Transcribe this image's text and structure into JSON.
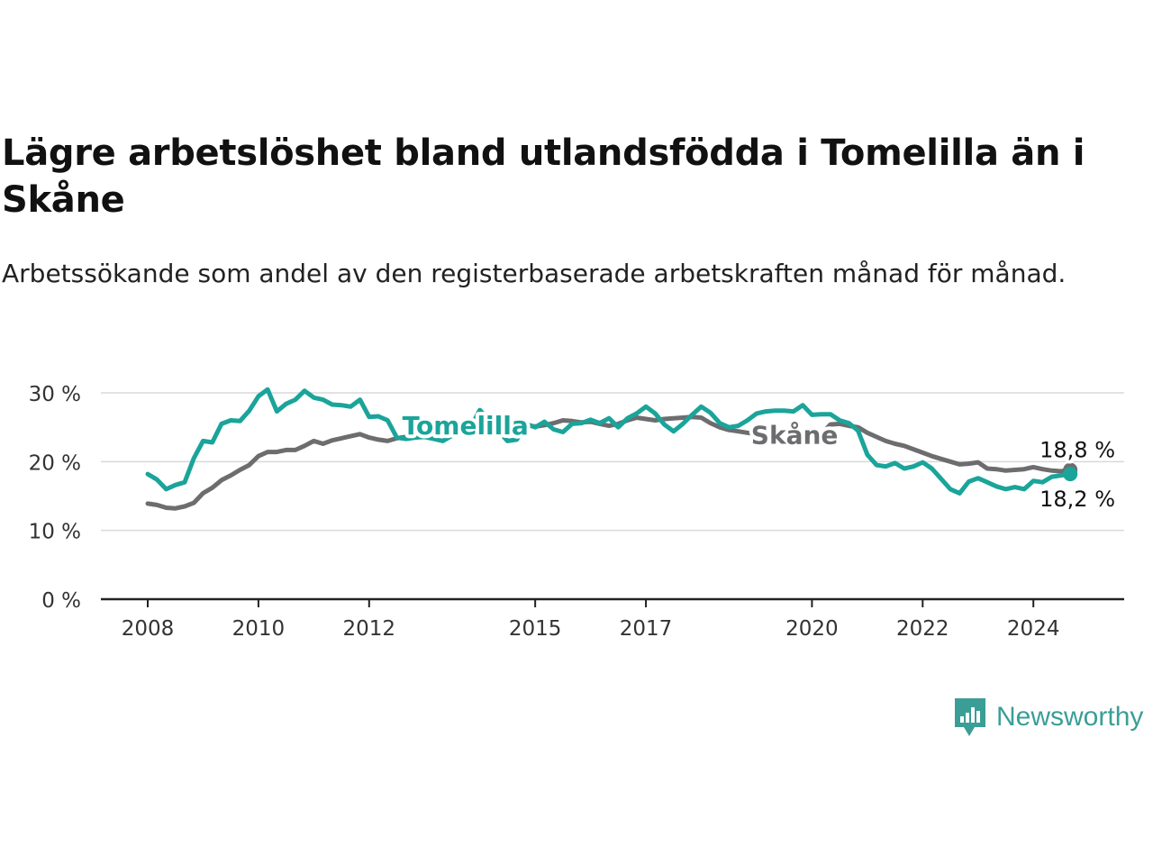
{
  "header": {
    "title": "Lägre arbetslöshet bland utlandsfödda i Tomelilla än i Skåne",
    "subtitle": "Arbetssökande som andel av den registerbaserade arbetskraften månad för månad."
  },
  "brand": {
    "name": "Newsworthy",
    "icon": "bar-chart-speech-bubble-icon",
    "color": "#3a9e97"
  },
  "chart_data": {
    "type": "line",
    "title": "Lägre arbetslöshet bland utlandsfödda i Tomelilla än i Skåne",
    "subtitle": "Arbetssökande som andel av den registerbaserade arbetskraften månad för månad.",
    "x_ticks": [
      "2008",
      "2010",
      "2012",
      "2015",
      "2017",
      "2020",
      "2022",
      "2024"
    ],
    "y_ticks": [
      "0 %",
      "10 %",
      "20 %",
      "30 %"
    ],
    "ylim": [
      0,
      30
    ],
    "grid": true,
    "series": [
      {
        "name": "Tomelilla",
        "color": "#1aa49a",
        "label": "Tomelilla",
        "end_label": "18,2 %",
        "points": [
          [
            "2008-01",
            18.2
          ],
          [
            "2008-03",
            17.4
          ],
          [
            "2008-05",
            16.0
          ],
          [
            "2008-07",
            16.6
          ],
          [
            "2008-09",
            17.0
          ],
          [
            "2008-11",
            20.5
          ],
          [
            "2009-01",
            23.0
          ],
          [
            "2009-03",
            22.8
          ],
          [
            "2009-05",
            25.5
          ],
          [
            "2009-07",
            26.0
          ],
          [
            "2009-09",
            25.9
          ],
          [
            "2009-11",
            27.4
          ],
          [
            "2010-01",
            29.5
          ],
          [
            "2010-03",
            30.5
          ],
          [
            "2010-05",
            27.3
          ],
          [
            "2010-07",
            28.4
          ],
          [
            "2010-09",
            29.0
          ],
          [
            "2010-11",
            30.3
          ],
          [
            "2011-01",
            29.3
          ],
          [
            "2011-03",
            29.0
          ],
          [
            "2011-05",
            28.3
          ],
          [
            "2011-07",
            28.2
          ],
          [
            "2011-09",
            28.0
          ],
          [
            "2011-11",
            29.0
          ],
          [
            "2012-01",
            26.5
          ],
          [
            "2012-03",
            26.6
          ],
          [
            "2012-05",
            26.0
          ],
          [
            "2012-07",
            23.5
          ],
          [
            "2012-09",
            23.3
          ],
          [
            "2012-11",
            23.5
          ],
          [
            "2013-01",
            23.6
          ],
          [
            "2013-03",
            23.3
          ],
          [
            "2013-05",
            23.0
          ],
          [
            "2013-07",
            23.8
          ],
          [
            "2013-09",
            24.5
          ],
          [
            "2013-11",
            25.0
          ],
          [
            "2014-01",
            27.5
          ],
          [
            "2014-03",
            26.0
          ],
          [
            "2014-05",
            24.5
          ],
          [
            "2014-07",
            23.0
          ],
          [
            "2014-09",
            23.2
          ],
          [
            "2014-11",
            25.5
          ],
          [
            "2015-01",
            25.0
          ],
          [
            "2015-03",
            25.8
          ],
          [
            "2015-05",
            24.7
          ],
          [
            "2015-07",
            24.3
          ],
          [
            "2015-09",
            25.5
          ],
          [
            "2015-11",
            25.6
          ],
          [
            "2016-01",
            26.1
          ],
          [
            "2016-03",
            25.6
          ],
          [
            "2016-05",
            26.3
          ],
          [
            "2016-07",
            25.0
          ],
          [
            "2016-09",
            26.3
          ],
          [
            "2016-11",
            27.0
          ],
          [
            "2017-01",
            28.0
          ],
          [
            "2017-03",
            27.0
          ],
          [
            "2017-05",
            25.4
          ],
          [
            "2017-07",
            24.4
          ],
          [
            "2017-09",
            25.5
          ],
          [
            "2017-11",
            26.8
          ],
          [
            "2018-01",
            28.0
          ],
          [
            "2018-03",
            27.1
          ],
          [
            "2018-05",
            25.6
          ],
          [
            "2018-07",
            25.0
          ],
          [
            "2018-09",
            25.2
          ],
          [
            "2018-11",
            26.0
          ],
          [
            "2019-01",
            27.0
          ],
          [
            "2019-03",
            27.3
          ],
          [
            "2019-05",
            27.4
          ],
          [
            "2019-07",
            27.4
          ],
          [
            "2019-09",
            27.3
          ],
          [
            "2019-11",
            28.2
          ],
          [
            "2020-01",
            26.8
          ],
          [
            "2020-03",
            26.9
          ],
          [
            "2020-05",
            26.9
          ],
          [
            "2020-07",
            26.0
          ],
          [
            "2020-09",
            25.6
          ],
          [
            "2020-11",
            24.5
          ],
          [
            "2021-01",
            21.0
          ],
          [
            "2021-03",
            19.5
          ],
          [
            "2021-05",
            19.3
          ],
          [
            "2021-07",
            19.8
          ],
          [
            "2021-09",
            19.0
          ],
          [
            "2021-11",
            19.3
          ],
          [
            "2022-01",
            19.9
          ],
          [
            "2022-03",
            19.0
          ],
          [
            "2022-05",
            17.5
          ],
          [
            "2022-07",
            16.0
          ],
          [
            "2022-09",
            15.4
          ],
          [
            "2022-11",
            17.1
          ],
          [
            "2023-01",
            17.6
          ],
          [
            "2023-03",
            17.0
          ],
          [
            "2023-05",
            16.4
          ],
          [
            "2023-07",
            16.0
          ],
          [
            "2023-09",
            16.3
          ],
          [
            "2023-11",
            16.0
          ],
          [
            "2024-01",
            17.2
          ],
          [
            "2024-03",
            17.0
          ],
          [
            "2024-05",
            17.8
          ],
          [
            "2024-07",
            18.0
          ],
          [
            "2024-09",
            18.2
          ]
        ]
      },
      {
        "name": "Skåne",
        "color": "#6d6d6f",
        "label": "Skåne",
        "end_label": "18,8 %",
        "points": [
          [
            "2008-01",
            13.9
          ],
          [
            "2008-03",
            13.7
          ],
          [
            "2008-05",
            13.3
          ],
          [
            "2008-07",
            13.2
          ],
          [
            "2008-09",
            13.5
          ],
          [
            "2008-11",
            14.0
          ],
          [
            "2009-01",
            15.4
          ],
          [
            "2009-03",
            16.2
          ],
          [
            "2009-05",
            17.3
          ],
          [
            "2009-07",
            18.0
          ],
          [
            "2009-09",
            18.8
          ],
          [
            "2009-11",
            19.5
          ],
          [
            "2010-01",
            20.8
          ],
          [
            "2010-03",
            21.4
          ],
          [
            "2010-05",
            21.4
          ],
          [
            "2010-07",
            21.7
          ],
          [
            "2010-09",
            21.7
          ],
          [
            "2010-11",
            22.3
          ],
          [
            "2011-01",
            23.0
          ],
          [
            "2011-03",
            22.6
          ],
          [
            "2011-05",
            23.1
          ],
          [
            "2011-07",
            23.4
          ],
          [
            "2011-09",
            23.7
          ],
          [
            "2011-11",
            24.0
          ],
          [
            "2012-01",
            23.5
          ],
          [
            "2012-03",
            23.2
          ],
          [
            "2012-05",
            23.0
          ],
          [
            "2012-07",
            23.4
          ],
          [
            "2012-09",
            23.6
          ],
          [
            "2012-11",
            23.8
          ],
          [
            "2013-01",
            24.0
          ],
          [
            "2013-03",
            24.2
          ],
          [
            "2013-05",
            24.3
          ],
          [
            "2013-07",
            24.5
          ],
          [
            "2013-09",
            24.6
          ],
          [
            "2013-11",
            24.8
          ],
          [
            "2014-01",
            24.9
          ],
          [
            "2014-03",
            25.0
          ],
          [
            "2014-05",
            25.0
          ],
          [
            "2014-07",
            25.1
          ],
          [
            "2014-09",
            25.2
          ],
          [
            "2014-11",
            25.3
          ],
          [
            "2015-01",
            25.1
          ],
          [
            "2015-03",
            25.3
          ],
          [
            "2015-05",
            25.6
          ],
          [
            "2015-07",
            26.0
          ],
          [
            "2015-09",
            25.9
          ],
          [
            "2015-11",
            25.7
          ],
          [
            "2016-01",
            25.8
          ],
          [
            "2016-03",
            25.5
          ],
          [
            "2016-05",
            25.2
          ],
          [
            "2016-07",
            25.5
          ],
          [
            "2016-09",
            26.0
          ],
          [
            "2016-11",
            26.4
          ],
          [
            "2017-01",
            26.2
          ],
          [
            "2017-03",
            26.0
          ],
          [
            "2017-05",
            26.2
          ],
          [
            "2017-07",
            26.3
          ],
          [
            "2017-09",
            26.4
          ],
          [
            "2017-11",
            26.5
          ],
          [
            "2018-01",
            26.4
          ],
          [
            "2018-03",
            25.6
          ],
          [
            "2018-05",
            25.0
          ],
          [
            "2018-07",
            24.6
          ],
          [
            "2018-09",
            24.4
          ],
          [
            "2018-11",
            24.2
          ],
          [
            "2019-01",
            24.0
          ],
          [
            "2019-03",
            23.9
          ],
          [
            "2019-05",
            23.8
          ],
          [
            "2019-07",
            23.7
          ],
          [
            "2019-09",
            23.6
          ],
          [
            "2019-11",
            23.5
          ],
          [
            "2020-01",
            23.3
          ],
          [
            "2020-03",
            24.0
          ],
          [
            "2020-05",
            25.4
          ],
          [
            "2020-07",
            25.5
          ],
          [
            "2020-09",
            25.2
          ],
          [
            "2020-11",
            25.0
          ],
          [
            "2021-01",
            24.2
          ],
          [
            "2021-03",
            23.6
          ],
          [
            "2021-05",
            23.0
          ],
          [
            "2021-07",
            22.6
          ],
          [
            "2021-09",
            22.3
          ],
          [
            "2021-11",
            21.8
          ],
          [
            "2022-01",
            21.3
          ],
          [
            "2022-03",
            20.8
          ],
          [
            "2022-05",
            20.4
          ],
          [
            "2022-07",
            20.0
          ],
          [
            "2022-09",
            19.6
          ],
          [
            "2022-11",
            19.7
          ],
          [
            "2023-01",
            19.9
          ],
          [
            "2023-03",
            19.0
          ],
          [
            "2023-05",
            18.9
          ],
          [
            "2023-07",
            18.7
          ],
          [
            "2023-09",
            18.8
          ],
          [
            "2023-11",
            18.9
          ],
          [
            "2024-01",
            19.2
          ],
          [
            "2024-03",
            18.9
          ],
          [
            "2024-05",
            18.7
          ],
          [
            "2024-07",
            18.6
          ],
          [
            "2024-09",
            18.8
          ]
        ]
      }
    ]
  }
}
